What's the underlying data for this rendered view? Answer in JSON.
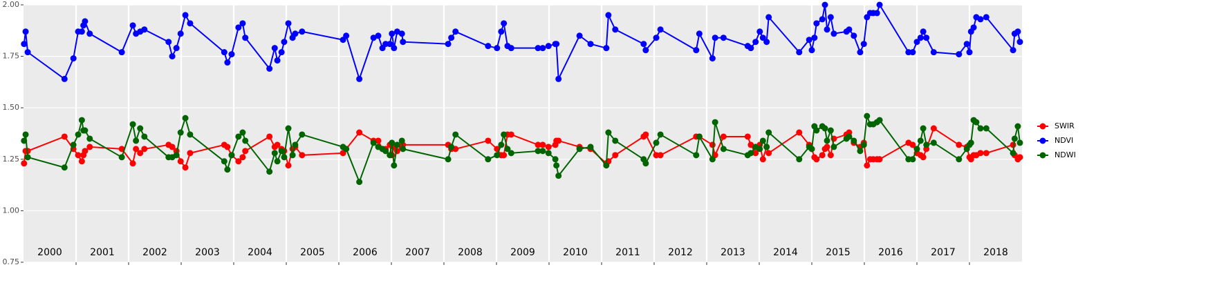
{
  "chart_data": {
    "type": "line",
    "x": [
      2000.01,
      2000.04,
      2000.08,
      2000.78,
      2000.95,
      2001.04,
      2001.11,
      2001.14,
      2001.17,
      2001.26,
      2001.87,
      2002.08,
      2002.14,
      2002.22,
      2002.3,
      2002.76,
      2002.83,
      2002.91,
      2002.99,
      2003.08,
      2003.17,
      2003.82,
      2003.88,
      2003.96,
      2004.09,
      2004.17,
      2004.22,
      2004.68,
      2004.78,
      2004.83,
      2004.91,
      2004.96,
      2005.04,
      2005.12,
      2005.17,
      2005.3,
      2006.08,
      2006.14,
      2006.39,
      2006.66,
      2006.75,
      2006.83,
      2006.89,
      2006.97,
      2007.01,
      2007.05,
      2007.11,
      2007.2,
      2007.22,
      2008.08,
      2008.14,
      2008.22,
      2008.84,
      2009.01,
      2009.09,
      2009.14,
      2009.21,
      2009.28,
      2009.79,
      2009.88,
      2009.99,
      2010.12,
      2010.14,
      2010.18,
      2010.58,
      2010.79,
      2011.09,
      2011.13,
      2011.26,
      2011.8,
      2011.84,
      2012.04,
      2012.12,
      2012.8,
      2012.86,
      2013.11,
      2013.16,
      2013.32,
      2013.78,
      2013.84,
      2013.93,
      2014.01,
      2014.07,
      2014.14,
      2014.18,
      2014.76,
      2014.95,
      2015.0,
      2015.05,
      2015.09,
      2015.2,
      2015.25,
      2015.29,
      2015.36,
      2015.42,
      2015.66,
      2015.71,
      2015.8,
      2015.92,
      2015.99,
      2016.05,
      2016.11,
      2016.17,
      2016.24,
      2016.29,
      2016.84,
      2016.92,
      2017.0,
      2017.07,
      2017.12,
      2017.18,
      2017.32,
      2017.8,
      2017.95,
      2018.0,
      2018.03,
      2018.08,
      2018.13,
      2018.21,
      2018.32,
      2018.83,
      2018.86,
      2018.92,
      2018.96
    ],
    "series": [
      {
        "name": "SWIR",
        "color": "#ff0000",
        "values": [
          1.23,
          1.29,
          1.29,
          1.36,
          1.3,
          1.27,
          1.24,
          1.27,
          1.29,
          1.31,
          1.3,
          1.23,
          1.3,
          1.28,
          1.3,
          1.32,
          1.31,
          1.29,
          1.24,
          1.21,
          1.28,
          1.32,
          1.31,
          1.27,
          1.24,
          1.26,
          1.29,
          1.36,
          1.31,
          1.32,
          1.3,
          1.29,
          1.22,
          1.3,
          1.31,
          1.27,
          1.28,
          1.3,
          1.38,
          1.34,
          1.34,
          1.3,
          1.3,
          1.32,
          1.27,
          1.31,
          1.29,
          1.31,
          1.32,
          1.32,
          1.3,
          1.3,
          1.34,
          1.3,
          1.27,
          1.27,
          1.37,
          1.37,
          1.32,
          1.32,
          1.31,
          1.32,
          1.34,
          1.34,
          1.31,
          1.3,
          1.23,
          1.24,
          1.27,
          1.36,
          1.37,
          1.27,
          1.27,
          1.36,
          1.36,
          1.32,
          1.27,
          1.36,
          1.36,
          1.32,
          1.28,
          1.32,
          1.25,
          1.31,
          1.28,
          1.38,
          1.32,
          1.3,
          1.26,
          1.25,
          1.27,
          1.3,
          1.31,
          1.27,
          1.35,
          1.37,
          1.38,
          1.33,
          1.31,
          1.33,
          1.22,
          1.25,
          1.25,
          1.25,
          1.25,
          1.33,
          1.32,
          1.28,
          1.27,
          1.26,
          1.3,
          1.4,
          1.32,
          1.31,
          1.26,
          1.25,
          1.27,
          1.27,
          1.28,
          1.28,
          1.32,
          1.27,
          1.25,
          1.26
        ]
      },
      {
        "name": "NDVI",
        "color": "#0000ff",
        "values": [
          1.81,
          1.87,
          1.77,
          1.64,
          1.74,
          1.87,
          1.87,
          1.9,
          1.92,
          1.86,
          1.77,
          1.9,
          1.86,
          1.87,
          1.88,
          1.82,
          1.75,
          1.79,
          1.86,
          1.95,
          1.91,
          1.77,
          1.72,
          1.76,
          1.89,
          1.91,
          1.84,
          1.69,
          1.79,
          1.73,
          1.77,
          1.82,
          1.91,
          1.84,
          1.86,
          1.87,
          1.83,
          1.85,
          1.64,
          1.84,
          1.85,
          1.79,
          1.81,
          1.81,
          1.86,
          1.79,
          1.87,
          1.86,
          1.82,
          1.81,
          1.84,
          1.87,
          1.8,
          1.79,
          1.87,
          1.91,
          1.8,
          1.79,
          1.79,
          1.79,
          1.8,
          1.81,
          1.81,
          1.64,
          1.85,
          1.81,
          1.79,
          1.95,
          1.88,
          1.81,
          1.78,
          1.84,
          1.88,
          1.78,
          1.86,
          1.74,
          1.84,
          1.84,
          1.8,
          1.79,
          1.82,
          1.87,
          1.84,
          1.82,
          1.94,
          1.77,
          1.83,
          1.78,
          1.84,
          1.91,
          1.93,
          2.0,
          1.88,
          1.94,
          1.86,
          1.87,
          1.88,
          1.85,
          1.77,
          1.81,
          1.94,
          1.96,
          1.96,
          1.96,
          2.0,
          1.77,
          1.77,
          1.82,
          1.84,
          1.87,
          1.84,
          1.77,
          1.76,
          1.81,
          1.77,
          1.87,
          1.89,
          1.94,
          1.93,
          1.94,
          1.78,
          1.86,
          1.87,
          1.82
        ]
      },
      {
        "name": "NDWI",
        "color": "#006400",
        "values": [
          1.34,
          1.37,
          1.26,
          1.21,
          1.32,
          1.37,
          1.44,
          1.39,
          1.39,
          1.35,
          1.26,
          1.42,
          1.34,
          1.4,
          1.36,
          1.26,
          1.26,
          1.27,
          1.38,
          1.45,
          1.37,
          1.24,
          1.2,
          1.27,
          1.36,
          1.38,
          1.34,
          1.19,
          1.28,
          1.24,
          1.29,
          1.26,
          1.4,
          1.27,
          1.32,
          1.37,
          1.31,
          1.3,
          1.14,
          1.33,
          1.31,
          1.3,
          1.29,
          1.27,
          1.33,
          1.22,
          1.32,
          1.34,
          1.3,
          1.25,
          1.31,
          1.37,
          1.25,
          1.27,
          1.32,
          1.37,
          1.3,
          1.28,
          1.29,
          1.29,
          1.28,
          1.25,
          1.22,
          1.17,
          1.3,
          1.31,
          1.22,
          1.38,
          1.34,
          1.25,
          1.23,
          1.33,
          1.37,
          1.27,
          1.36,
          1.25,
          1.43,
          1.3,
          1.27,
          1.28,
          1.31,
          1.3,
          1.34,
          1.31,
          1.38,
          1.25,
          1.31,
          1.3,
          1.41,
          1.39,
          1.41,
          1.4,
          1.34,
          1.39,
          1.31,
          1.35,
          1.36,
          1.34,
          1.29,
          1.32,
          1.46,
          1.42,
          1.42,
          1.43,
          1.44,
          1.25,
          1.25,
          1.3,
          1.34,
          1.4,
          1.32,
          1.33,
          1.25,
          1.3,
          1.32,
          1.33,
          1.44,
          1.43,
          1.4,
          1.4,
          1.28,
          1.35,
          1.41,
          1.33
        ]
      }
    ],
    "xlim": [
      2000,
      2019
    ],
    "xticks": [
      2001,
      2002,
      2003,
      2004,
      2005,
      2006,
      2007,
      2008,
      2009,
      2010,
      2011,
      2012,
      2013,
      2014,
      2015,
      2016,
      2017,
      2018
    ],
    "year_labels": [
      {
        "value": 2000.5,
        "label": "2000"
      },
      {
        "value": 2001.5,
        "label": "2001"
      },
      {
        "value": 2002.5,
        "label": "2002"
      },
      {
        "value": 2003.5,
        "label": "2003"
      },
      {
        "value": 2004.5,
        "label": "2004"
      },
      {
        "value": 2005.5,
        "label": "2005"
      },
      {
        "value": 2006.5,
        "label": "2006"
      },
      {
        "value": 2007.5,
        "label": "2007"
      },
      {
        "value": 2008.5,
        "label": "2008"
      },
      {
        "value": 2009.5,
        "label": "2009"
      },
      {
        "value": 2010.5,
        "label": "2010"
      },
      {
        "value": 2011.5,
        "label": "2011"
      },
      {
        "value": 2012.5,
        "label": "2012"
      },
      {
        "value": 2013.5,
        "label": "2013"
      },
      {
        "value": 2014.5,
        "label": "2014"
      },
      {
        "value": 2015.5,
        "label": "2015"
      },
      {
        "value": 2016.5,
        "label": "2016"
      },
      {
        "value": 2017.5,
        "label": "2017"
      },
      {
        "value": 2018.5,
        "label": "2018"
      }
    ],
    "ylim": [
      0.75,
      2.0
    ],
    "yticks": [
      {
        "value": 0.75,
        "label": "0.75"
      },
      {
        "value": 1.0,
        "label": "1.00"
      },
      {
        "value": 1.25,
        "label": "1.25"
      },
      {
        "value": 1.5,
        "label": "1.50"
      },
      {
        "value": 1.75,
        "label": "1.75"
      },
      {
        "value": 2.0,
        "label": "2.00"
      }
    ],
    "grid": true,
    "legend": "right"
  }
}
